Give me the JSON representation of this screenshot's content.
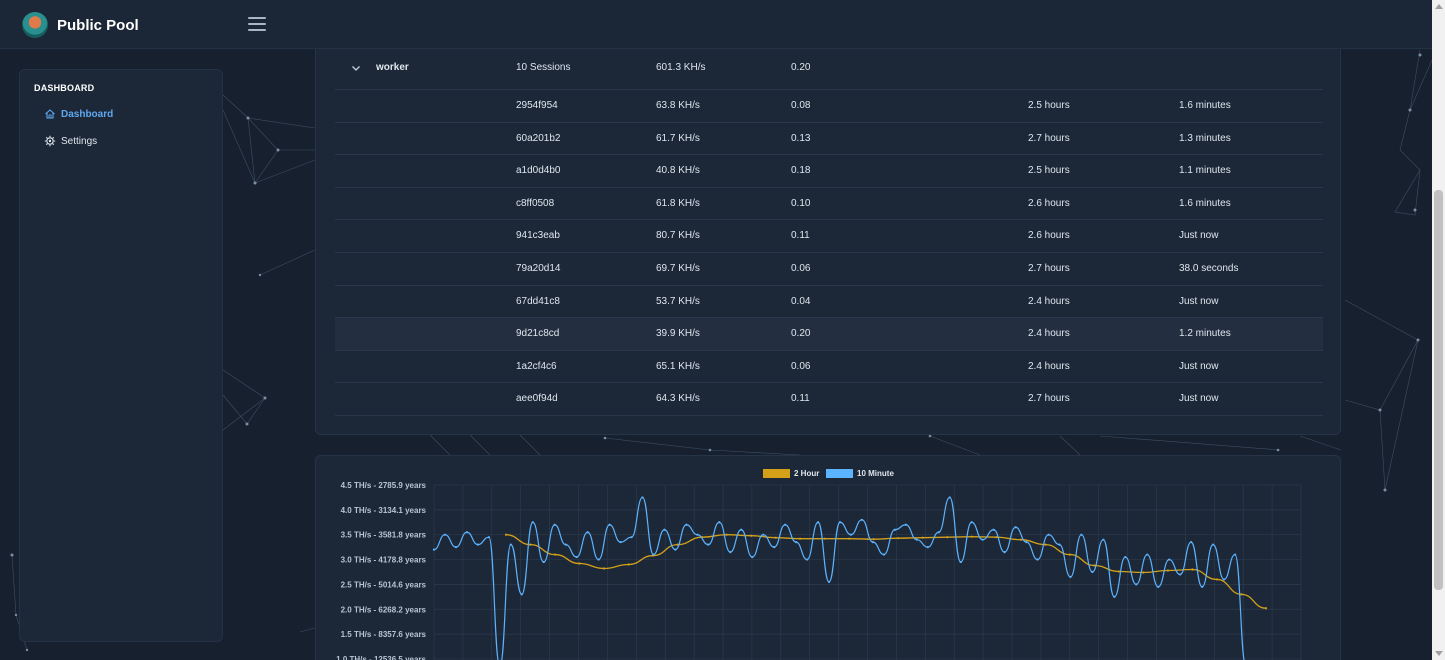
{
  "header": {
    "brand": "Public Pool",
    "logo_icon": "pool-logo-icon",
    "menu_icon": "hamburger-icon"
  },
  "sidebar": {
    "heading": "DASHBOARD",
    "items": [
      {
        "label": "Dashboard",
        "icon": "home-icon",
        "active": true
      },
      {
        "label": "Settings",
        "icon": "gear-icon",
        "active": false
      }
    ]
  },
  "workers": {
    "group": {
      "name": "worker",
      "sessions": "10 Sessions",
      "hashrate": "601.3 KH/s",
      "difficulty": "0.20"
    },
    "rows": [
      {
        "id": "2954f954",
        "hashrate": "63.8 KH/s",
        "difficulty": "0.08",
        "uptime": "2.5 hours",
        "last_seen": "1.6 minutes"
      },
      {
        "id": "60a201b2",
        "hashrate": "61.7 KH/s",
        "difficulty": "0.13",
        "uptime": "2.7 hours",
        "last_seen": "1.3 minutes"
      },
      {
        "id": "a1d0d4b0",
        "hashrate": "40.8 KH/s",
        "difficulty": "0.18",
        "uptime": "2.5 hours",
        "last_seen": "1.1 minutes"
      },
      {
        "id": "c8ff0508",
        "hashrate": "61.8 KH/s",
        "difficulty": "0.10",
        "uptime": "2.6 hours",
        "last_seen": "1.6 minutes"
      },
      {
        "id": "941c3eab",
        "hashrate": "80.7 KH/s",
        "difficulty": "0.11",
        "uptime": "2.6 hours",
        "last_seen": "Just now"
      },
      {
        "id": "79a20d14",
        "hashrate": "69.7 KH/s",
        "difficulty": "0.06",
        "uptime": "2.7 hours",
        "last_seen": "38.0 seconds"
      },
      {
        "id": "67dd41c8",
        "hashrate": "53.7 KH/s",
        "difficulty": "0.04",
        "uptime": "2.4 hours",
        "last_seen": "Just now"
      },
      {
        "id": "9d21c8cd",
        "hashrate": "39.9 KH/s",
        "difficulty": "0.20",
        "uptime": "2.4 hours",
        "last_seen": "1.2 minutes"
      },
      {
        "id": "1a2cf4c6",
        "hashrate": "65.1 KH/s",
        "difficulty": "0.06",
        "uptime": "2.4 hours",
        "last_seen": "Just now"
      },
      {
        "id": "aee0f94d",
        "hashrate": "64.3 KH/s",
        "difficulty": "0.11",
        "uptime": "2.7 hours",
        "last_seen": "Just now"
      }
    ]
  },
  "chart_data": {
    "type": "line",
    "title": "",
    "xlabel": "",
    "ylabel": "",
    "legend_position": "top-center",
    "grid": true,
    "y_ticks": [
      {
        "value": 4.5,
        "label": "4.5 TH/s - 2785.9 years"
      },
      {
        "value": 4.0,
        "label": "4.0 TH/s - 3134.1 years"
      },
      {
        "value": 3.5,
        "label": "3.5 TH/s - 3581.8 years"
      },
      {
        "value": 3.0,
        "label": "3.0 TH/s - 4178.8 years"
      },
      {
        "value": 2.5,
        "label": "2.5 TH/s - 5014.6 years"
      },
      {
        "value": 2.0,
        "label": "2.0 TH/s - 6268.2 years"
      },
      {
        "value": 1.5,
        "label": "1.5 TH/s - 8357.6 years"
      },
      {
        "value": 1.0,
        "label": "1.0 TH/s - 12536.5 years"
      }
    ],
    "ylim": [
      1.0,
      4.5
    ],
    "series": [
      {
        "name": "2 Hour",
        "color": "#d4a017",
        "values": [
          3.5,
          3.3,
          3.1,
          2.92,
          2.82,
          2.9,
          3.08,
          3.3,
          3.45,
          3.5,
          3.48,
          3.44,
          3.42,
          3.42,
          3.42,
          3.41,
          3.43,
          3.44,
          3.45,
          3.46,
          3.45,
          3.4,
          3.3,
          3.1,
          2.88,
          2.76,
          2.74,
          2.78,
          2.8,
          2.6,
          2.3,
          2.02
        ]
      },
      {
        "name": "10 Minute",
        "color": "#5cb3ff",
        "values": [
          3.2,
          3.5,
          3.25,
          3.55,
          3.3,
          3.45,
          0.85,
          3.3,
          2.3,
          3.75,
          2.95,
          3.7,
          3.3,
          3.05,
          3.55,
          3.0,
          3.7,
          3.35,
          3.45,
          4.25,
          3.1,
          3.6,
          3.2,
          3.7,
          3.5,
          3.3,
          3.75,
          3.15,
          3.6,
          3.05,
          3.5,
          3.25,
          3.7,
          3.35,
          3.0,
          3.75,
          2.55,
          3.75,
          3.5,
          3.8,
          3.35,
          3.1,
          3.6,
          3.7,
          3.4,
          3.25,
          3.55,
          4.25,
          2.95,
          3.75,
          3.4,
          3.6,
          3.15,
          3.65,
          3.35,
          3.0,
          3.5,
          3.3,
          2.65,
          3.5,
          2.75,
          3.4,
          2.25,
          3.05,
          2.5,
          3.1,
          2.45,
          3.0,
          2.7,
          3.35,
          2.45,
          3.3,
          2.6,
          3.1,
          0.85
        ]
      }
    ]
  }
}
